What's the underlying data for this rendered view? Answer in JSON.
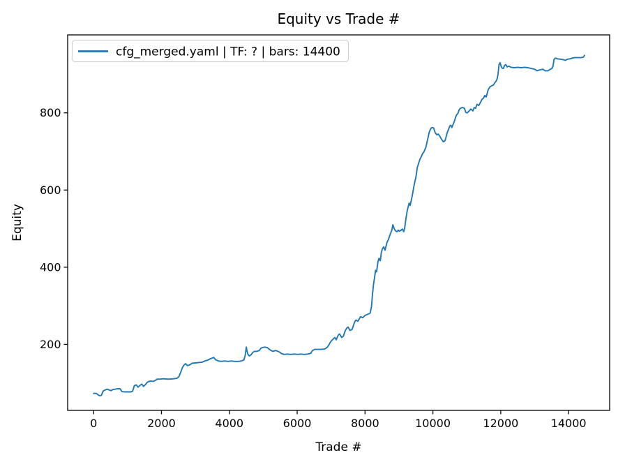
{
  "chart_data": {
    "type": "line",
    "title": "Equity vs Trade #",
    "xlabel": "Trade #",
    "ylabel": "Equity",
    "xlim": [
      -765,
      15210
    ],
    "ylim": [
      29,
      1002
    ],
    "xticks": [
      0,
      2000,
      4000,
      6000,
      8000,
      10000,
      12000,
      14000
    ],
    "yticks": [
      200,
      400,
      600,
      800
    ],
    "grid": false,
    "legend_position": "upper left",
    "colors": {
      "line": "#1f77b4",
      "spine": "#000000",
      "legend_border": "#cccccc",
      "background": "#ffffff"
    },
    "series": [
      {
        "name": "cfg_merged.yaml | TF: ? | bars: 14400",
        "color": "#1f77b4",
        "points": [
          [
            0,
            73
          ],
          [
            80,
            73
          ],
          [
            140,
            69
          ],
          [
            180,
            67
          ],
          [
            230,
            68
          ],
          [
            280,
            79
          ],
          [
            340,
            82
          ],
          [
            400,
            84
          ],
          [
            460,
            82
          ],
          [
            510,
            80
          ],
          [
            570,
            83
          ],
          [
            640,
            84
          ],
          [
            710,
            85
          ],
          [
            780,
            85
          ],
          [
            830,
            78
          ],
          [
            900,
            77
          ],
          [
            1010,
            77
          ],
          [
            1100,
            77
          ],
          [
            1150,
            79
          ],
          [
            1200,
            93
          ],
          [
            1260,
            95
          ],
          [
            1310,
            89
          ],
          [
            1370,
            94
          ],
          [
            1420,
            97
          ],
          [
            1470,
            91
          ],
          [
            1530,
            96
          ],
          [
            1570,
            101
          ],
          [
            1630,
            104
          ],
          [
            1700,
            105
          ],
          [
            1760,
            104
          ],
          [
            1820,
            107
          ],
          [
            1880,
            110
          ],
          [
            1960,
            110
          ],
          [
            2060,
            111
          ],
          [
            2160,
            110
          ],
          [
            2260,
            110
          ],
          [
            2360,
            111
          ],
          [
            2450,
            112
          ],
          [
            2510,
            116
          ],
          [
            2560,
            126
          ],
          [
            2620,
            140
          ],
          [
            2660,
            146
          ],
          [
            2710,
            150
          ],
          [
            2770,
            145
          ],
          [
            2830,
            147
          ],
          [
            2900,
            151
          ],
          [
            3000,
            152
          ],
          [
            3100,
            153
          ],
          [
            3200,
            154
          ],
          [
            3280,
            157
          ],
          [
            3360,
            159
          ],
          [
            3450,
            163
          ],
          [
            3540,
            166
          ],
          [
            3600,
            160
          ],
          [
            3680,
            157
          ],
          [
            3760,
            156
          ],
          [
            3860,
            157
          ],
          [
            3960,
            156
          ],
          [
            4060,
            157
          ],
          [
            4160,
            156
          ],
          [
            4260,
            156
          ],
          [
            4360,
            157
          ],
          [
            4430,
            160
          ],
          [
            4470,
            172
          ],
          [
            4500,
            193
          ],
          [
            4520,
            183
          ],
          [
            4550,
            174
          ],
          [
            4590,
            170
          ],
          [
            4640,
            173
          ],
          [
            4690,
            179
          ],
          [
            4740,
            182
          ],
          [
            4810,
            182
          ],
          [
            4880,
            184
          ],
          [
            4930,
            190
          ],
          [
            4980,
            192
          ],
          [
            5040,
            193
          ],
          [
            5110,
            192
          ],
          [
            5170,
            188
          ],
          [
            5230,
            184
          ],
          [
            5290,
            182
          ],
          [
            5350,
            184
          ],
          [
            5410,
            183
          ],
          [
            5480,
            180
          ],
          [
            5540,
            176
          ],
          [
            5610,
            174
          ],
          [
            5710,
            175
          ],
          [
            5810,
            174
          ],
          [
            5910,
            175
          ],
          [
            6010,
            174
          ],
          [
            6110,
            175
          ],
          [
            6210,
            174
          ],
          [
            6310,
            175
          ],
          [
            6400,
            177
          ],
          [
            6450,
            184
          ],
          [
            6520,
            187
          ],
          [
            6610,
            187
          ],
          [
            6710,
            187
          ],
          [
            6810,
            188
          ],
          [
            6880,
            192
          ],
          [
            6930,
            198
          ],
          [
            6980,
            206
          ],
          [
            7040,
            212
          ],
          [
            7110,
            218
          ],
          [
            7150,
            212
          ],
          [
            7210,
            224
          ],
          [
            7250,
            227
          ],
          [
            7310,
            218
          ],
          [
            7360,
            221
          ],
          [
            7420,
            236
          ],
          [
            7460,
            242
          ],
          [
            7500,
            245
          ],
          [
            7560,
            236
          ],
          [
            7620,
            239
          ],
          [
            7690,
            257
          ],
          [
            7730,
            263
          ],
          [
            7790,
            260
          ],
          [
            7830,
            266
          ],
          [
            7870,
            272
          ],
          [
            7930,
            269
          ],
          [
            8000,
            275
          ],
          [
            8080,
            278
          ],
          [
            8150,
            281
          ],
          [
            8190,
            298
          ],
          [
            8220,
            330
          ],
          [
            8250,
            356
          ],
          [
            8280,
            372
          ],
          [
            8310,
            392
          ],
          [
            8340,
            388
          ],
          [
            8380,
            414
          ],
          [
            8410,
            423
          ],
          [
            8450,
            417
          ],
          [
            8480,
            438
          ],
          [
            8510,
            447
          ],
          [
            8550,
            453
          ],
          [
            8590,
            444
          ],
          [
            8650,
            465
          ],
          [
            8690,
            472
          ],
          [
            8720,
            480
          ],
          [
            8790,
            496
          ],
          [
            8820,
            510
          ],
          [
            8860,
            500
          ],
          [
            8900,
            494
          ],
          [
            8940,
            492
          ],
          [
            8980,
            496
          ],
          [
            9010,
            493
          ],
          [
            9060,
            496
          ],
          [
            9100,
            499
          ],
          [
            9140,
            492
          ],
          [
            9170,
            502
          ],
          [
            9200,
            523
          ],
          [
            9240,
            544
          ],
          [
            9270,
            556
          ],
          [
            9300,
            566
          ],
          [
            9330,
            560
          ],
          [
            9390,
            584
          ],
          [
            9440,
            610
          ],
          [
            9470,
            622
          ],
          [
            9500,
            634
          ],
          [
            9540,
            658
          ],
          [
            9580,
            670
          ],
          [
            9620,
            680
          ],
          [
            9660,
            687
          ],
          [
            9700,
            695
          ],
          [
            9730,
            698
          ],
          [
            9760,
            704
          ],
          [
            9790,
            710
          ],
          [
            9830,
            725
          ],
          [
            9860,
            737
          ],
          [
            9890,
            749
          ],
          [
            9930,
            758
          ],
          [
            9970,
            762
          ],
          [
            10020,
            761
          ],
          [
            10070,
            748
          ],
          [
            10120,
            743
          ],
          [
            10160,
            745
          ],
          [
            10200,
            740
          ],
          [
            10250,
            732
          ],
          [
            10310,
            725
          ],
          [
            10360,
            728
          ],
          [
            10420,
            748
          ],
          [
            10460,
            757
          ],
          [
            10500,
            766
          ],
          [
            10530,
            768
          ],
          [
            10560,
            762
          ],
          [
            10600,
            771
          ],
          [
            10640,
            780
          ],
          [
            10670,
            789
          ],
          [
            10700,
            795
          ],
          [
            10740,
            799
          ],
          [
            10770,
            807
          ],
          [
            10810,
            812
          ],
          [
            10870,
            814
          ],
          [
            10930,
            812
          ],
          [
            10970,
            801
          ],
          [
            11010,
            800
          ],
          [
            11080,
            806
          ],
          [
            11120,
            810
          ],
          [
            11180,
            805
          ],
          [
            11220,
            814
          ],
          [
            11260,
            812
          ],
          [
            11300,
            822
          ],
          [
            11350,
            819
          ],
          [
            11400,
            827
          ],
          [
            11450,
            835
          ],
          [
            11490,
            838
          ],
          [
            11530,
            845
          ],
          [
            11570,
            841
          ],
          [
            11630,
            860
          ],
          [
            11680,
            867
          ],
          [
            11730,
            870
          ],
          [
            11780,
            872
          ],
          [
            11820,
            877
          ],
          [
            11860,
            882
          ],
          [
            11890,
            887
          ],
          [
            11920,
            900
          ],
          [
            11950,
            925
          ],
          [
            11980,
            930
          ],
          [
            12010,
            921
          ],
          [
            12040,
            916
          ],
          [
            12080,
            915
          ],
          [
            12110,
            923
          ],
          [
            12150,
            925
          ],
          [
            12190,
            919
          ],
          [
            12240,
            921
          ],
          [
            12300,
            918
          ],
          [
            12400,
            917
          ],
          [
            12500,
            918
          ],
          [
            12600,
            917
          ],
          [
            12700,
            918
          ],
          [
            12800,
            917
          ],
          [
            12900,
            915
          ],
          [
            13000,
            913
          ],
          [
            13070,
            909
          ],
          [
            13140,
            911
          ],
          [
            13240,
            913
          ],
          [
            13310,
            909
          ],
          [
            13390,
            909
          ],
          [
            13460,
            913
          ],
          [
            13510,
            915
          ],
          [
            13540,
            921
          ],
          [
            13570,
            938
          ],
          [
            13610,
            942
          ],
          [
            13670,
            940
          ],
          [
            13770,
            939
          ],
          [
            13840,
            938
          ],
          [
            13900,
            936
          ],
          [
            13970,
            939
          ],
          [
            14040,
            940
          ],
          [
            14110,
            942
          ],
          [
            14180,
            943
          ],
          [
            14270,
            943
          ],
          [
            14360,
            943
          ],
          [
            14430,
            944
          ],
          [
            14470,
            949
          ]
        ]
      }
    ]
  }
}
